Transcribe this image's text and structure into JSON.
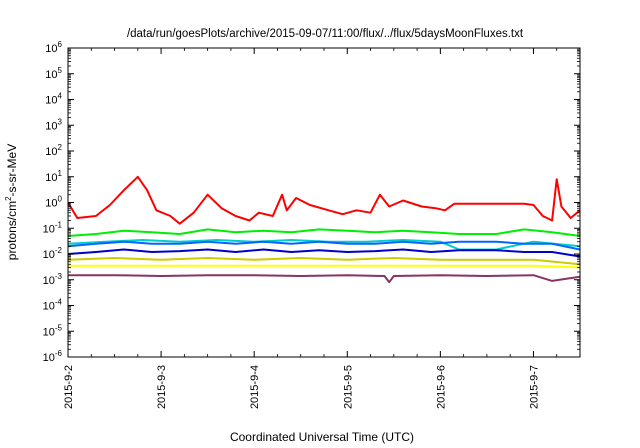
{
  "chart_data": {
    "type": "line",
    "title": "/data/run/goesPlots/archive/2015-09-07/11:00/flux/../flux/5daysMoonFluxes.txt",
    "xlabel": "Coordinated Universal Time (UTC)",
    "ylabel": "protons/cm2-s-sr-MeV",
    "yscale": "log",
    "ylim": [
      1e-06,
      1000000.0
    ],
    "xlim": [
      0,
      5.5
    ],
    "x_unit": "days since 2015-09-02 00:00 UTC",
    "grid": false,
    "legend": "none",
    "x_ticks": [
      {
        "x": 0,
        "label": "2015-9-2"
      },
      {
        "x": 1,
        "label": "2015-9-3"
      },
      {
        "x": 2,
        "label": "2015-9-4"
      },
      {
        "x": 3,
        "label": "2015-9-5"
      },
      {
        "x": 4,
        "label": "2015-9-6"
      },
      {
        "x": 5,
        "label": "2015-9-7"
      }
    ],
    "y_ticks": [
      {
        "exp": "6",
        "value": 1000000.0
      },
      {
        "exp": "5",
        "value": 100000.0
      },
      {
        "exp": "4",
        "value": 10000.0
      },
      {
        "exp": "3",
        "value": 1000.0
      },
      {
        "exp": "2",
        "value": 100.0
      },
      {
        "exp": "1",
        "value": 10.0
      },
      {
        "exp": "0",
        "value": 1
      },
      {
        "exp": "-1",
        "value": 0.1
      },
      {
        "exp": "-2",
        "value": 0.01
      },
      {
        "exp": "-3",
        "value": 0.001
      },
      {
        "exp": "-4",
        "value": 0.0001
      },
      {
        "exp": "-5",
        "value": 1e-05
      },
      {
        "exp": "-6",
        "value": 1e-06
      }
    ],
    "series": [
      {
        "color": "#ff0000",
        "x": [
          0,
          0.1,
          0.3,
          0.45,
          0.6,
          0.75,
          0.85,
          0.95,
          1.1,
          1.2,
          1.35,
          1.5,
          1.65,
          1.8,
          1.95,
          2.05,
          2.2,
          2.3,
          2.35,
          2.45,
          2.6,
          2.8,
          2.95,
          3.1,
          3.25,
          3.35,
          3.45,
          3.6,
          3.8,
          3.95,
          4.05,
          4.15,
          4.5,
          4.9,
          5.0,
          5.1,
          5.2,
          5.25,
          5.3,
          5.4,
          5.5
        ],
        "y": [
          1.0,
          0.25,
          0.3,
          0.8,
          3,
          10,
          3,
          0.5,
          0.3,
          0.15,
          0.4,
          2,
          0.6,
          0.3,
          0.2,
          0.4,
          0.3,
          2,
          0.5,
          1.5,
          0.8,
          0.5,
          0.35,
          0.5,
          0.4,
          2,
          0.7,
          1.2,
          0.7,
          0.6,
          0.5,
          0.9,
          0.9,
          0.9,
          0.8,
          0.3,
          0.2,
          8,
          0.7,
          0.25,
          0.5
        ]
      },
      {
        "color": "#00ee00",
        "x": [
          0,
          0.3,
          0.6,
          0.9,
          1.2,
          1.5,
          1.8,
          2.1,
          2.4,
          2.7,
          3.0,
          3.3,
          3.6,
          3.9,
          4.2,
          4.6,
          4.9,
          5.2,
          5.5
        ],
        "y": [
          0.05,
          0.06,
          0.08,
          0.07,
          0.06,
          0.09,
          0.07,
          0.08,
          0.07,
          0.09,
          0.08,
          0.07,
          0.08,
          0.07,
          0.06,
          0.06,
          0.09,
          0.07,
          0.05
        ]
      },
      {
        "color": "#00cccc",
        "x": [
          0,
          0.4,
          0.8,
          1.2,
          1.6,
          2.0,
          2.4,
          2.8,
          3.2,
          3.6,
          4.0,
          4.2,
          4.6,
          5.0,
          5.5
        ],
        "y": [
          0.025,
          0.03,
          0.035,
          0.03,
          0.035,
          0.03,
          0.035,
          0.03,
          0.03,
          0.035,
          0.03,
          0.015,
          0.015,
          0.03,
          0.02
        ]
      },
      {
        "color": "#0066ff",
        "x": [
          0,
          0.3,
          0.6,
          0.9,
          1.2,
          1.5,
          1.8,
          2.1,
          2.4,
          2.7,
          3.0,
          3.3,
          3.6,
          3.9,
          4.2,
          4.6,
          4.9,
          5.2,
          5.5
        ],
        "y": [
          0.02,
          0.025,
          0.03,
          0.025,
          0.025,
          0.03,
          0.025,
          0.03,
          0.025,
          0.03,
          0.025,
          0.025,
          0.03,
          0.025,
          0.03,
          0.03,
          0.025,
          0.025,
          0.015
        ]
      },
      {
        "color": "#0000cc",
        "x": [
          0,
          0.3,
          0.6,
          0.9,
          1.2,
          1.5,
          1.8,
          2.1,
          2.4,
          2.7,
          3.0,
          3.3,
          3.6,
          3.9,
          4.2,
          4.6,
          4.9,
          5.2,
          5.5
        ],
        "y": [
          0.01,
          0.012,
          0.015,
          0.012,
          0.013,
          0.015,
          0.012,
          0.015,
          0.012,
          0.014,
          0.012,
          0.013,
          0.015,
          0.012,
          0.014,
          0.014,
          0.012,
          0.012,
          0.008
        ]
      },
      {
        "color": "#cccc00",
        "x": [
          0,
          0.5,
          1.0,
          1.5,
          2.0,
          2.5,
          3.0,
          3.5,
          4.0,
          4.5,
          5.0,
          5.5
        ],
        "y": [
          0.006,
          0.007,
          0.006,
          0.007,
          0.006,
          0.007,
          0.006,
          0.007,
          0.006,
          0.006,
          0.006,
          0.004
        ]
      },
      {
        "color": "#ffff00",
        "x": [
          0,
          0.5,
          1.0,
          1.5,
          2.0,
          2.5,
          3.0,
          3.5,
          4.0,
          4.5,
          5.0,
          5.5
        ],
        "y": [
          0.0035,
          0.0035,
          0.0035,
          0.0035,
          0.0035,
          0.0035,
          0.0035,
          0.0035,
          0.0035,
          0.0035,
          0.0035,
          0.003
        ]
      },
      {
        "color": "#883366",
        "x": [
          0,
          0.5,
          1.0,
          1.5,
          2.0,
          2.5,
          3.0,
          3.4,
          3.45,
          3.5,
          4.0,
          4.5,
          5.0,
          5.2,
          5.5
        ],
        "y": [
          0.0015,
          0.0015,
          0.0014,
          0.0015,
          0.0015,
          0.0014,
          0.0015,
          0.0014,
          0.0008,
          0.0014,
          0.0015,
          0.0014,
          0.0015,
          0.0009,
          0.0013
        ]
      }
    ]
  }
}
